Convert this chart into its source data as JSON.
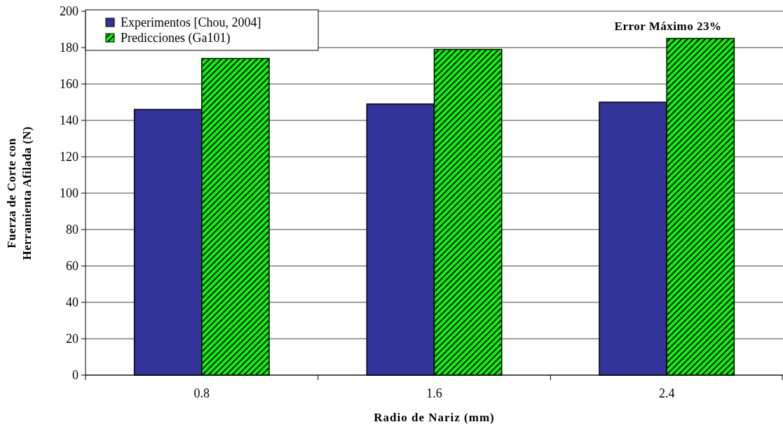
{
  "chart_data": {
    "type": "bar",
    "xlabel": "Radio de Nariz (mm)",
    "ylabel": "Fuerza de Corte con Herramienta Afilada (N)",
    "categories": [
      "0.8",
      "1.6",
      "2.4"
    ],
    "series": [
      {
        "name": "Experimentos [Chou, 2004]",
        "color": "#333399",
        "values": [
          146,
          149,
          150
        ]
      },
      {
        "name": "Predicciones (Ga101)",
        "color": "#00ff00",
        "values": [
          174,
          179,
          185
        ]
      }
    ],
    "ylim": [
      0,
      200
    ],
    "yticks": [
      0,
      20,
      40,
      60,
      80,
      100,
      120,
      140,
      160,
      180,
      200
    ],
    "grid": "y",
    "legend": "top left",
    "annotations": [
      "Error Máximo 23%"
    ]
  }
}
